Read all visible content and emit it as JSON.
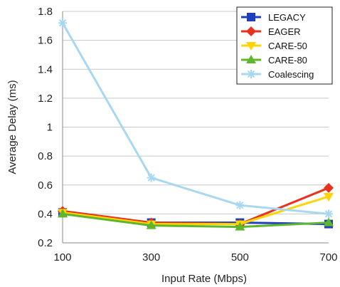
{
  "chart_data": {
    "type": "line",
    "title": "",
    "xlabel": "Input Rate (Mbps)",
    "ylabel": "Average Delay (ms)",
    "x": [
      100,
      300,
      500,
      700
    ],
    "xticks": [
      "100",
      "300",
      "500",
      "700"
    ],
    "yticks": [
      "0.2",
      "0.4",
      "0.6",
      "0.8",
      "1",
      "1.2",
      "1.4",
      "1.6",
      "1.8"
    ],
    "ylim": [
      0.2,
      1.8
    ],
    "xlim": [
      100,
      700
    ],
    "grid": "horizontal",
    "legend_position": "top-right",
    "series": [
      {
        "name": "LEGACY",
        "values": [
          0.41,
          0.34,
          0.34,
          0.33
        ],
        "color": "#1f3fbf",
        "marker": "square"
      },
      {
        "name": "EAGER",
        "values": [
          0.42,
          0.34,
          0.33,
          0.58
        ],
        "color": "#e8321e",
        "marker": "diamond"
      },
      {
        "name": "CARE-50",
        "values": [
          0.41,
          0.33,
          0.33,
          0.52
        ],
        "color": "#ffd400",
        "marker": "triangle-down"
      },
      {
        "name": "CARE-80",
        "values": [
          0.4,
          0.32,
          0.31,
          0.34
        ],
        "color": "#5cb82a",
        "marker": "triangle-up"
      },
      {
        "name": "Coalescing",
        "values": [
          1.72,
          0.65,
          0.46,
          0.4
        ],
        "color": "#a8d8f0",
        "marker": "star"
      }
    ]
  }
}
